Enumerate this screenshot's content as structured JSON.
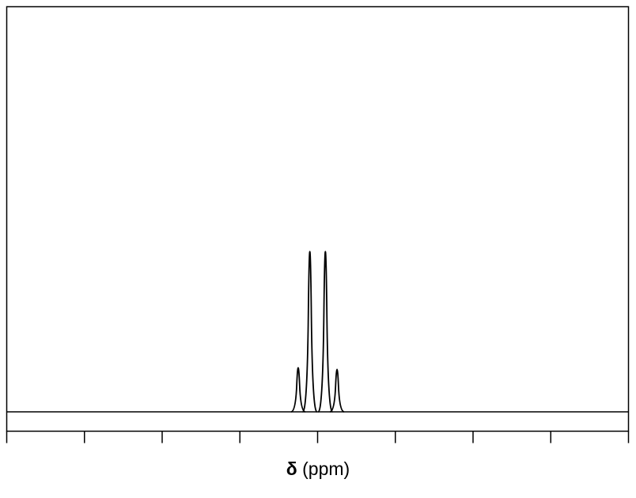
{
  "chart_data": {
    "type": "line",
    "title": "",
    "xlabel": {
      "symbol": "δ",
      "unit": "(ppm)"
    },
    "ylabel": "",
    "grid": false,
    "legend": "none",
    "x_tick_count": 9,
    "baseline": 0,
    "ylim": [
      0,
      1.0
    ],
    "series": [
      {
        "peak_shape": "narrow",
        "peaks": [
          {
            "x": 3.75,
            "height": 0.26
          },
          {
            "x": 3.9,
            "height": 1.0
          },
          {
            "x": 4.1,
            "height": 1.0
          },
          {
            "x": 4.25,
            "height": 0.25
          }
        ]
      }
    ],
    "line_color": "#000000"
  }
}
